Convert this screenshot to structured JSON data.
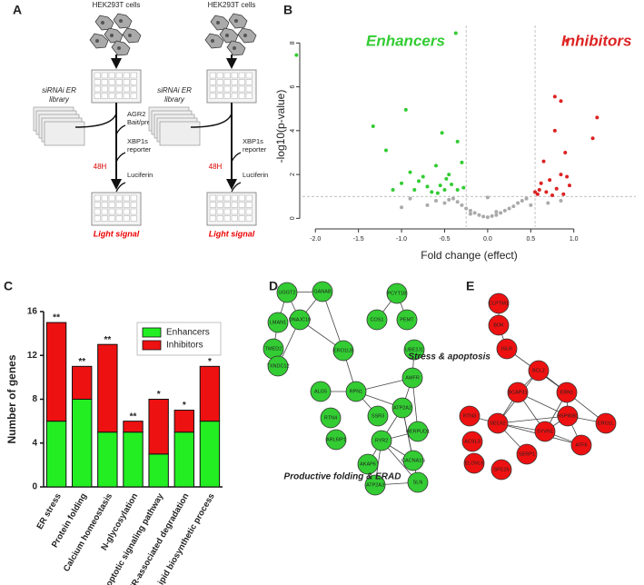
{
  "panel_labels": [
    "A",
    "B",
    "C",
    "D",
    "E"
  ],
  "workflow": {
    "columns": [
      {
        "cells": "HEK293T cells",
        "library": [
          "siRNAi ER",
          "library"
        ],
        "steps": [
          "AGR2 Bait/prey",
          "XBP1s reporter",
          "Luciferin"
        ],
        "time": "48H",
        "result": "Light signal"
      },
      {
        "cells": "HEK293T cells",
        "library": [
          "siRNAi ER",
          "library"
        ],
        "steps": [
          "XBP1s reporter",
          "Luciferin"
        ],
        "time": "48H",
        "result": "Light signal"
      }
    ]
  },
  "chart_data": [
    {
      "type": "scatter",
      "x_label": "Fold change (effect)",
      "y_label": "-log10(p-value)",
      "xlim": [
        -2.15,
        1.72
      ],
      "ylim": [
        -0.4,
        8.8
      ],
      "xticks": [
        {
          "value": -2,
          "label": "-2.0"
        },
        {
          "value": -1.5,
          "label": "-1.5"
        },
        {
          "value": -1,
          "label": "-1.0"
        },
        {
          "value": -0.5,
          "label": "-0.5"
        },
        {
          "value": 0,
          "label": "0.0"
        },
        {
          "value": 0.5,
          "label": "0.5"
        },
        {
          "value": 1,
          "label": "1.0"
        }
      ],
      "yticks": [
        0,
        2,
        4,
        6,
        8
      ],
      "vlines": [
        -0.25,
        0.55
      ],
      "hlines": [
        1
      ],
      "series": [
        {
          "name": "Enhancers",
          "color": "#33cc33",
          "x": [
            -2.22,
            -0.37,
            -0.95,
            -1.33,
            -0.53,
            -1.18,
            -0.35,
            -0.3,
            -0.6,
            -0.45,
            -0.9,
            -0.8,
            -1.0,
            -0.7,
            -0.55,
            -0.5,
            -0.35,
            -1.1,
            -0.65,
            -0.42,
            -0.28,
            -0.75,
            -0.58,
            -0.48,
            -0.85
          ],
          "values": [
            7.45,
            8.45,
            4.95,
            4.2,
            3.9,
            3.1,
            3.5,
            2.55,
            2.4,
            2.0,
            2.1,
            1.7,
            1.6,
            1.45,
            1.5,
            1.3,
            1.3,
            1.3,
            1.2,
            1.55,
            1.4,
            1.9,
            1.15,
            1.8,
            1.3
          ]
        },
        {
          "name": "Inhibitors",
          "color": "#dd2222",
          "x": [
            0.92,
            0.78,
            0.85,
            1.27,
            1.22,
            0.78,
            0.9,
            0.65,
            0.85,
            0.72,
            0.95,
            0.6,
            0.55,
            0.68,
            0.8,
            0.88,
            0.62,
            0.75,
            0.58,
            0.92
          ],
          "values": [
            8.1,
            5.55,
            5.35,
            4.6,
            3.65,
            4.0,
            3.0,
            2.6,
            2.0,
            1.75,
            1.5,
            1.3,
            1.2,
            1.2,
            1.35,
            1.1,
            1.6,
            1.05,
            1.1,
            1.9
          ]
        },
        {
          "color": "#aaaaaa",
          "x": [
            0,
            0.05,
            -0.05,
            0.1,
            -0.1,
            0.15,
            -0.15,
            0.2,
            -0.2,
            0.25,
            -0.25,
            0.3,
            -0.3,
            0.35,
            -0.35,
            0.4,
            -0.4,
            0.45,
            -0.45,
            -0.5,
            0.5,
            -0.6,
            0.7,
            -0.7,
            -0.9,
            0.85,
            -1.0,
            0.0,
            -0.2,
            0.1
          ],
          "values": [
            0.05,
            0.1,
            0.08,
            0.15,
            0.15,
            0.25,
            0.25,
            0.35,
            0.35,
            0.45,
            0.45,
            0.55,
            0.6,
            0.7,
            0.75,
            0.8,
            0.9,
            0.9,
            0.85,
            0.7,
            0.6,
            0.8,
            0.7,
            0.6,
            0.9,
            0.8,
            0.5,
            0.95,
            0.2,
            0.3
          ]
        }
      ]
    },
    {
      "type": "bar",
      "stacked": true,
      "y_label": "Number of genes",
      "categories": [
        "ER stress",
        "Protein folding",
        "Calcium homeostasis",
        "N-glycosylation",
        "Apoptotic signaling pathway",
        "ER-associated degradation",
        "Lipid biosynthetic process"
      ],
      "series": [
        {
          "name": "Enhancers",
          "color": "#22ee22",
          "values": [
            6,
            8,
            5,
            5,
            3,
            5,
            6
          ]
        },
        {
          "name": "Inhibitors",
          "color": "#ee1111",
          "values": [
            9,
            3,
            8,
            1,
            5,
            2,
            5
          ]
        }
      ],
      "annotations": [
        "**",
        "**",
        "**",
        "**",
        "*",
        "*",
        "*"
      ],
      "ylim": [
        0,
        16
      ],
      "yticks": [
        0,
        4,
        8,
        12,
        16
      ],
      "legend": "upper right"
    }
  ],
  "networks": [
    {
      "title": "Productive folding & ERAD",
      "color": "#33cc33",
      "nodes": [
        "PCYT1B",
        "COS1",
        "PEMT",
        "UGGT2",
        "GANAB",
        "LMAN1",
        "TMED2",
        "DNAJC10",
        "TXNDC12",
        "ERO1LB",
        "UBE2J1",
        "AMFR",
        "ALG5",
        "RPN1",
        "SSR3",
        "RTN4",
        "ATP2A2",
        "HERPUD1",
        "ARL6IP1",
        "RYR2",
        "CACNA1S",
        "AKAP6",
        "SLN",
        "ATP2A3"
      ]
    },
    {
      "title": "Stress & apoptosis",
      "color": "#ee1111",
      "nodes": [
        "CLPTM1",
        "BOK",
        "ISLR",
        "BCL2",
        "BCAP31",
        "ERN1",
        "HSP90B1",
        "ERO1L",
        "SYVN1",
        "ATF6",
        "SEC62",
        "RTN3",
        "ACSL3",
        "ELOVL6",
        "SPC25",
        "SERP1"
      ]
    }
  ]
}
